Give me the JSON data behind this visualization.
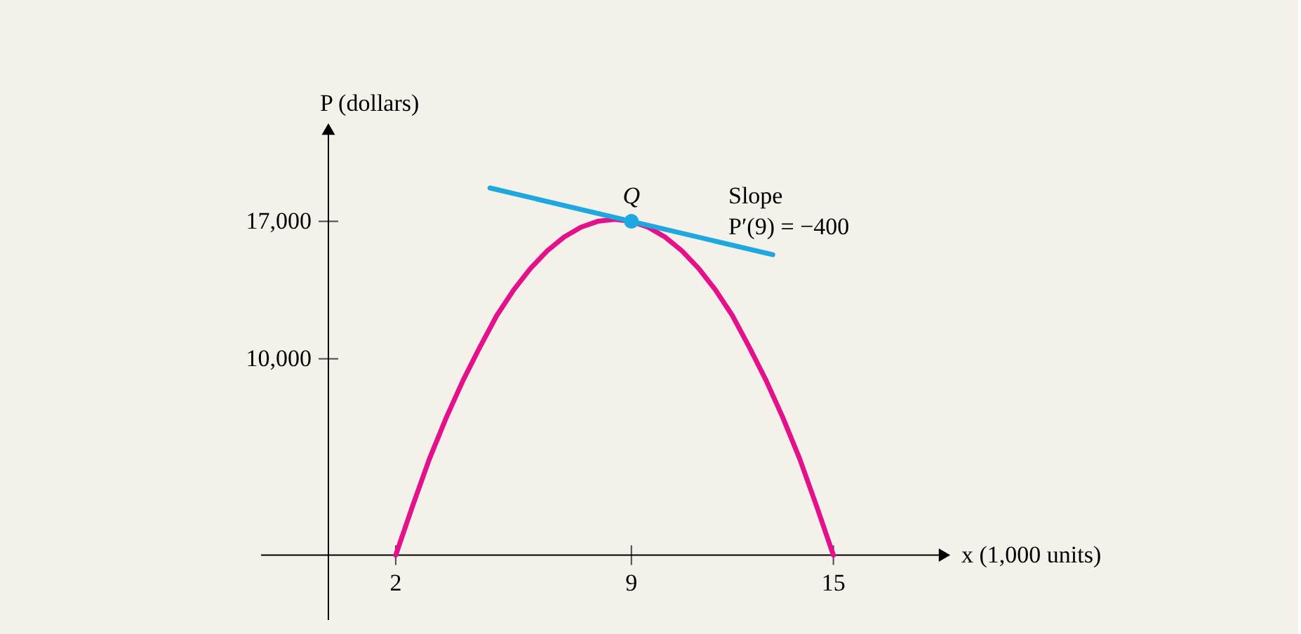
{
  "chart_data": {
    "type": "line",
    "xlabel": "x (1,000 units)",
    "ylabel": "P (dollars)",
    "xlim": [
      -2,
      18.3
    ],
    "ylim": [
      -3300,
      21700
    ],
    "xticks": [
      2,
      9,
      15
    ],
    "yticks": [
      {
        "value": 10000,
        "label": "10,000"
      },
      {
        "value": 17000,
        "label": "17,000"
      }
    ],
    "series": [
      {
        "color": "#e5118a",
        "x": [
          2,
          2.5,
          3,
          3.5,
          4,
          4.5,
          5,
          5.5,
          6,
          6.5,
          7,
          7.5,
          8,
          8.5,
          9,
          9.5,
          10,
          10.5,
          11,
          11.5,
          12,
          12.5,
          13,
          13.5,
          14,
          14.5,
          15
        ],
        "values": [
          0,
          2500,
          4900,
          7000,
          8900,
          10600,
          12200,
          13500,
          14600,
          15500,
          16200,
          16700,
          17000,
          17100,
          17000,
          16700,
          16200,
          15500,
          14600,
          13500,
          12200,
          10600,
          8900,
          7000,
          4900,
          2500,
          0
        ]
      },
      {
        "type": "line",
        "color": "#1fa8e0",
        "x": [
          4.8,
          13.2
        ],
        "values": [
          18700,
          15300
        ]
      },
      {
        "type": "scatter",
        "color": "#1fa8e0",
        "x": [
          9
        ],
        "values": [
          17000
        ]
      }
    ],
    "annotations": [
      {
        "text": "Q",
        "x": 9,
        "y": 17000
      },
      "Slope",
      "P′(9) = −400"
    ],
    "grid": false
  }
}
